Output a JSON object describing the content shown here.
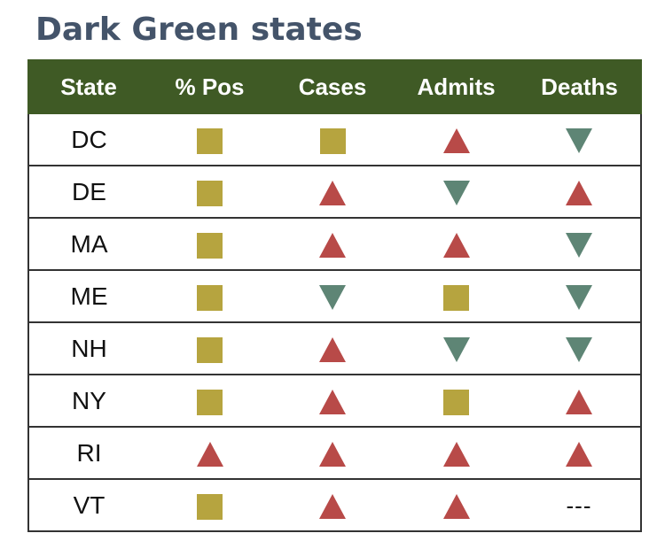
{
  "title": "Dark Green states",
  "columns": [
    "State",
    "% Pos",
    "Cases",
    "Admits",
    "Deaths"
  ],
  "colors": {
    "header_bg": "#3f5a25",
    "title": "#44546a",
    "square": "#b6a43f",
    "up": "#b84a48",
    "down": "#5e8575"
  },
  "rows": [
    {
      "state": "DC",
      "values": [
        {
          "icon": "square"
        },
        {
          "icon": "square"
        },
        {
          "icon": "up"
        },
        {
          "icon": "down"
        }
      ]
    },
    {
      "state": "DE",
      "values": [
        {
          "icon": "square"
        },
        {
          "icon": "up"
        },
        {
          "icon": "down"
        },
        {
          "icon": "up"
        }
      ]
    },
    {
      "state": "MA",
      "values": [
        {
          "icon": "square"
        },
        {
          "icon": "up"
        },
        {
          "icon": "up"
        },
        {
          "icon": "down"
        }
      ]
    },
    {
      "state": "ME",
      "values": [
        {
          "icon": "square"
        },
        {
          "icon": "down"
        },
        {
          "icon": "square"
        },
        {
          "icon": "down"
        }
      ]
    },
    {
      "state": "NH",
      "values": [
        {
          "icon": "square"
        },
        {
          "icon": "up"
        },
        {
          "icon": "down"
        },
        {
          "icon": "down"
        }
      ]
    },
    {
      "state": "NY",
      "values": [
        {
          "icon": "square"
        },
        {
          "icon": "up"
        },
        {
          "icon": "square"
        },
        {
          "icon": "up"
        }
      ]
    },
    {
      "state": "RI",
      "values": [
        {
          "icon": "up"
        },
        {
          "icon": "up"
        },
        {
          "icon": "up"
        },
        {
          "icon": "up"
        }
      ]
    },
    {
      "state": "VT",
      "values": [
        {
          "icon": "square"
        },
        {
          "icon": "up"
        },
        {
          "icon": "up"
        },
        {
          "icon": "dash",
          "text": "---"
        }
      ]
    }
  ]
}
